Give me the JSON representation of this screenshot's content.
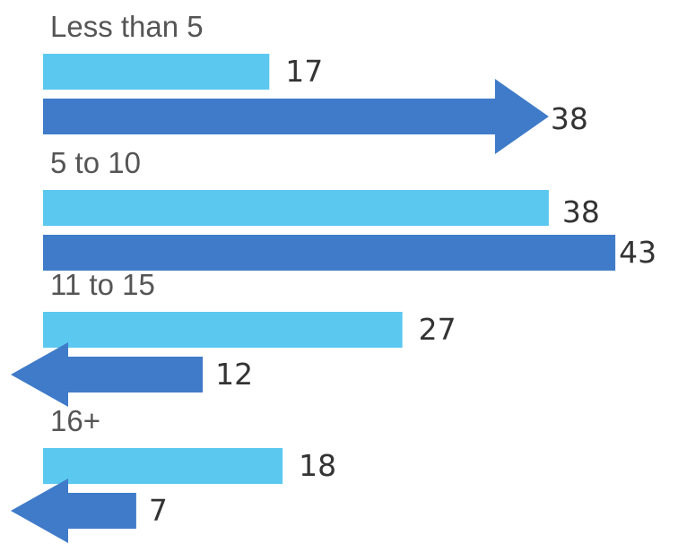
{
  "chart_data": {
    "type": "bar",
    "orientation": "horizontal",
    "categories": [
      "Less than 5",
      "5 to 10",
      "11 to 15",
      "16+"
    ],
    "series": [
      {
        "values": [
          17,
          38,
          27,
          18
        ],
        "color": "#5BC8F0"
      },
      {
        "values": [
          38,
          43,
          12,
          7
        ],
        "color": "#3F7BC8"
      }
    ],
    "trend_markers": [
      "arrow-right",
      "none",
      "arrow-left",
      "arrow-left"
    ],
    "xlim": [
      0,
      43
    ],
    "grid": false,
    "legend": "none"
  }
}
